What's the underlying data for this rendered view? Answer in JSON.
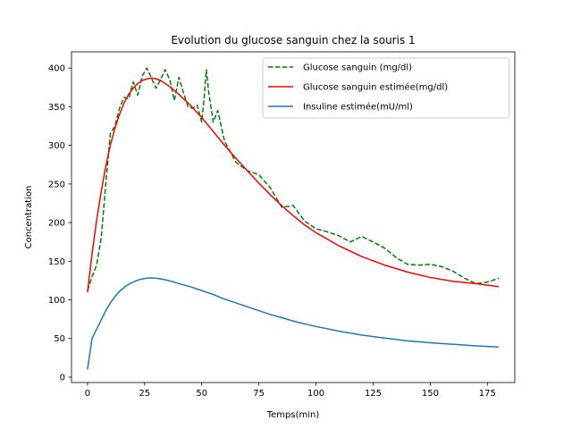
{
  "chart_data": {
    "type": "line",
    "title": "Evolution du glucose sanguin chez la souris 1",
    "xlabel": "Temps(min)",
    "ylabel": "Concentration",
    "xlim": [
      -7,
      187
    ],
    "ylim": [
      -7,
      421
    ],
    "xticks": [
      0,
      25,
      50,
      75,
      100,
      125,
      150,
      175
    ],
    "yticks": [
      0,
      50,
      100,
      150,
      200,
      250,
      300,
      350,
      400
    ],
    "grid": false,
    "legend_position": "top-right",
    "series": [
      {
        "name": "Glucose sanguin (mg/dl)",
        "color": "#008000",
        "style": "dashed",
        "x": [
          0,
          2,
          4,
          6,
          8,
          10,
          12,
          14,
          16,
          18,
          20,
          22,
          24,
          26,
          28,
          30,
          32,
          34,
          36,
          38,
          40,
          42,
          44,
          46,
          48,
          50,
          51,
          52,
          53,
          55,
          57,
          60,
          65,
          70,
          75,
          80,
          85,
          90,
          95,
          100,
          105,
          110,
          115,
          120,
          125,
          130,
          135,
          140,
          145,
          150,
          155,
          160,
          165,
          170,
          175,
          180
        ],
        "y": [
          112,
          130,
          145,
          180,
          250,
          315,
          325,
          348,
          362,
          360,
          382,
          365,
          390,
          400,
          387,
          374,
          385,
          398,
          385,
          358,
          388,
          368,
          350,
          348,
          352,
          330,
          360,
          398,
          370,
          330,
          345,
          305,
          278,
          267,
          262,
          245,
          220,
          222,
          202,
          192,
          188,
          183,
          175,
          182,
          175,
          167,
          155,
          146,
          145,
          146,
          143,
          137,
          128,
          121,
          123,
          128
        ]
      },
      {
        "name": "Glucose sanguin estimée(mg/dl)",
        "color": "#ff0000",
        "style": "solid",
        "x": [
          0,
          2,
          4,
          6,
          8,
          10,
          12,
          14,
          16,
          18,
          20,
          22,
          24,
          26,
          28,
          30,
          32,
          34,
          36,
          38,
          40,
          45,
          50,
          55,
          60,
          65,
          70,
          75,
          80,
          85,
          90,
          95,
          100,
          110,
          120,
          130,
          140,
          150,
          160,
          170,
          180
        ],
        "y": [
          110,
          160,
          203,
          240,
          273,
          300,
          322,
          340,
          355,
          366,
          374,
          380,
          384,
          386,
          387,
          386,
          384,
          380,
          376,
          371,
          366,
          352,
          336,
          318,
          300,
          283,
          267,
          251,
          236,
          222,
          209,
          197,
          187,
          170,
          156,
          145,
          136,
          129,
          124,
          121,
          117
        ]
      },
      {
        "name": "Insuline estimée(mU/ml)",
        "color": "#1f77b4",
        "style": "solid",
        "x": [
          0,
          2,
          4,
          6,
          8,
          10,
          12,
          14,
          16,
          18,
          20,
          22,
          24,
          26,
          28,
          30,
          32,
          34,
          36,
          38,
          40,
          45,
          50,
          55,
          60,
          65,
          70,
          75,
          80,
          85,
          90,
          95,
          100,
          110,
          120,
          130,
          140,
          150,
          160,
          170,
          180
        ],
        "y": [
          10,
          50,
          62,
          74,
          86,
          96,
          104,
          111,
          116,
          120,
          123,
          125.5,
          127,
          128,
          128.3,
          128,
          127,
          126,
          124.5,
          123,
          121,
          117,
          112,
          107,
          101,
          96,
          91,
          86,
          81,
          77,
          72.5,
          69,
          65.5,
          59.5,
          54.5,
          50.5,
          47,
          44.5,
          42.5,
          40.5,
          39
        ]
      }
    ]
  }
}
